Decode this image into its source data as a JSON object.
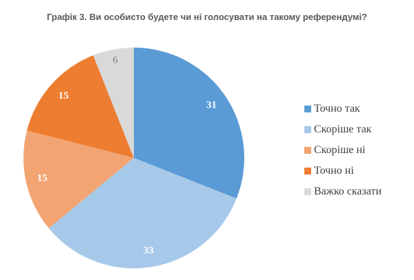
{
  "chart_data": {
    "type": "pie",
    "title": "Графік 3. Ви особисто будете чи ні голосувати на такому референдумі?",
    "start_angle_deg": 0,
    "direction": "clockwise",
    "legend_position": "right",
    "data_labels_shown": true,
    "slices": [
      {
        "label": "Точно так",
        "value": 31,
        "color": "#5B9BD5",
        "label_color": "#FFFFFF"
      },
      {
        "label": "Скоріше так",
        "value": 33,
        "color": "#A6C9E9",
        "label_color": "#FFFFFF"
      },
      {
        "label": "Скоріше ні",
        "value": 15,
        "color": "#F2A572",
        "label_color": "#FFFFFF"
      },
      {
        "label": "Точно ні",
        "value": 15,
        "color": "#ED7D31",
        "label_color": "#FFFFFF"
      },
      {
        "label": "Важко сказати",
        "value": 6,
        "color": "#D9D9D9",
        "label_color": "#7F7F7F"
      }
    ]
  },
  "colors": {
    "title_text": "#595959",
    "legend_text": "#3F3F3F",
    "background": "#FFFFFF"
  }
}
